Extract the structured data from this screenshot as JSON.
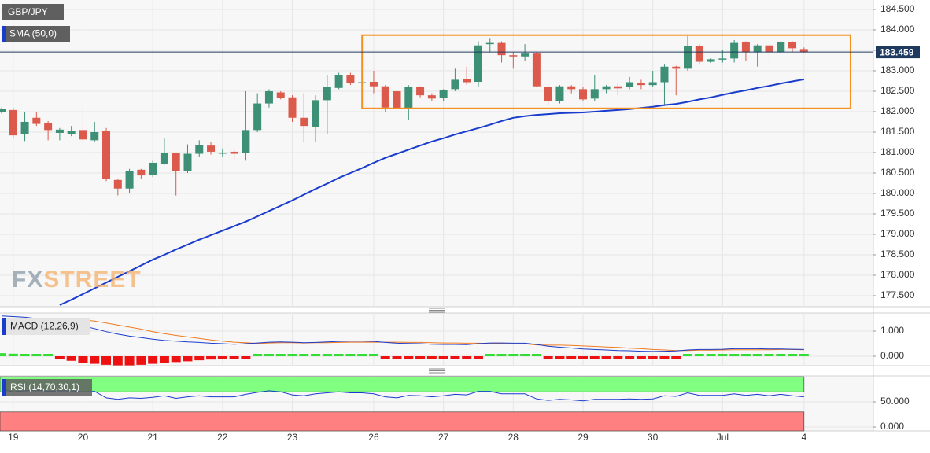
{
  "chart_data": {
    "type": "candlestick",
    "title": "GBP/JPY",
    "open": [
      181.98,
      182.04,
      181.46,
      181.85,
      181.72,
      181.48,
      181.45,
      181.55,
      181.3,
      181.52,
      180.33,
      180.12,
      180.58,
      180.45,
      180.72,
      180.98,
      180.55,
      180.97,
      181.17,
      180.98,
      181.02,
      180.98,
      181.55,
      182.2,
      182.47,
      182.35,
      181.85,
      181.62,
      182.28,
      182.58,
      182.9,
      182.7,
      182.73,
      182.62,
      182.5,
      182.07,
      182.6,
      182.4,
      182.33,
      182.55,
      182.8,
      182.73,
      183.65,
      183.68,
      183.38,
      183.35,
      183.42,
      182.6,
      182.25,
      182.62,
      182.55,
      182.32,
      182.55,
      182.62,
      182.6,
      182.7,
      182.65,
      182.72,
      183.1,
      183.05,
      183.6,
      183.22,
      183.28,
      183.3,
      183.7,
      183.45,
      183.62,
      183.45,
      183.7,
      183.53
    ],
    "high": [
      182.1,
      182.1,
      182.0,
      182.0,
      181.77,
      181.6,
      181.65,
      182.1,
      181.75,
      181.6,
      180.35,
      180.6,
      180.6,
      180.8,
      181.35,
      181.0,
      181.2,
      181.3,
      181.25,
      181.1,
      181.1,
      182.5,
      182.45,
      182.55,
      182.5,
      182.4,
      182.45,
      182.4,
      182.9,
      182.95,
      182.95,
      182.75,
      183.0,
      182.65,
      182.55,
      182.65,
      182.62,
      182.45,
      182.55,
      183.05,
      183.1,
      183.72,
      183.8,
      183.72,
      183.45,
      183.65,
      183.45,
      182.65,
      182.65,
      182.65,
      182.6,
      182.9,
      182.65,
      182.7,
      182.85,
      182.78,
      183.0,
      183.15,
      183.12,
      183.85,
      183.65,
      183.3,
      183.5,
      183.75,
      183.72,
      183.65,
      183.65,
      183.72,
      183.72,
      183.57
    ],
    "low": [
      181.95,
      181.35,
      181.28,
      181.65,
      181.3,
      181.3,
      181.4,
      181.25,
      181.25,
      180.3,
      179.95,
      180.0,
      180.35,
      180.4,
      180.7,
      179.95,
      180.5,
      180.9,
      180.95,
      180.9,
      180.8,
      180.8,
      181.5,
      182.1,
      182.3,
      181.75,
      181.25,
      181.25,
      181.45,
      182.55,
      182.65,
      182.65,
      182.45,
      182.0,
      181.75,
      181.8,
      182.35,
      182.25,
      182.25,
      182.5,
      182.65,
      182.6,
      183.45,
      183.2,
      183.05,
      183.25,
      182.6,
      182.15,
      182.2,
      182.45,
      182.25,
      182.25,
      182.45,
      182.4,
      182.55,
      182.55,
      182.6,
      182.15,
      182.4,
      183.0,
      183.15,
      183.2,
      183.2,
      183.2,
      183.25,
      183.1,
      183.15,
      183.42,
      183.45,
      183.43
    ],
    "close": [
      182.06,
      181.42,
      181.75,
      181.7,
      181.55,
      181.56,
      181.52,
      181.32,
      181.5,
      180.35,
      180.12,
      180.55,
      180.44,
      180.75,
      180.98,
      180.55,
      180.97,
      181.18,
      181.02,
      181.0,
      180.97,
      181.55,
      182.2,
      182.5,
      182.33,
      181.85,
      181.65,
      182.28,
      182.6,
      182.9,
      182.7,
      182.72,
      182.62,
      182.1,
      182.07,
      182.6,
      182.4,
      182.32,
      182.52,
      182.78,
      182.72,
      183.62,
      183.68,
      183.38,
      183.35,
      183.42,
      182.62,
      182.25,
      182.62,
      182.55,
      182.3,
      182.55,
      182.62,
      182.57,
      182.72,
      182.65,
      182.72,
      183.1,
      183.05,
      183.6,
      183.22,
      183.28,
      183.3,
      183.68,
      183.45,
      183.62,
      183.45,
      183.7,
      183.55,
      183.46
    ],
    "up_color": "#3d8f76",
    "down_color": "#db5a4c",
    "series": [
      {
        "name": "SMA (50,0)",
        "color": "#1a3ccc",
        "values": [
          null,
          null,
          null,
          null,
          null,
          177.27,
          177.4,
          177.54,
          177.68,
          177.82,
          177.96,
          178.1,
          178.24,
          178.38,
          178.5,
          178.63,
          178.75,
          178.87,
          178.98,
          179.09,
          179.2,
          179.31,
          179.44,
          179.57,
          179.7,
          179.83,
          179.97,
          180.11,
          180.24,
          180.38,
          180.5,
          180.62,
          180.75,
          180.87,
          180.97,
          181.07,
          181.17,
          181.27,
          181.35,
          181.44,
          181.52,
          181.6,
          181.68,
          181.77,
          181.85,
          181.89,
          181.92,
          181.94,
          181.96,
          181.97,
          181.98,
          182.0,
          182.02,
          182.04,
          182.06,
          182.09,
          182.12,
          182.16,
          182.19,
          182.24,
          182.3,
          182.35,
          182.41,
          182.47,
          182.52,
          182.58,
          182.63,
          182.69,
          182.74,
          182.79
        ]
      }
    ],
    "ylim": [
      177.23,
      184.73
    ],
    "yticks": [
      {
        "value": 184.5,
        "label": "184.500"
      },
      {
        "value": 184,
        "label": "184.000"
      },
      {
        "value": 183.5,
        "label": "183.500"
      },
      {
        "value": 183,
        "label": "183.000"
      },
      {
        "value": 182.5,
        "label": "182.500"
      },
      {
        "value": 182,
        "label": "182.000"
      },
      {
        "value": 181.5,
        "label": "181.500"
      },
      {
        "value": 181,
        "label": "181.000"
      },
      {
        "value": 180.5,
        "label": "180.500"
      },
      {
        "value": 180,
        "label": "180.000"
      },
      {
        "value": 179.5,
        "label": "179.500"
      },
      {
        "value": 179,
        "label": "179.000"
      },
      {
        "value": 178.5,
        "label": "178.500"
      },
      {
        "value": 178,
        "label": "178.000"
      },
      {
        "value": 177.5,
        "label": "177.500"
      }
    ],
    "xticks": [
      {
        "value": 1,
        "label": "19"
      },
      {
        "value": 7,
        "label": "20"
      },
      {
        "value": 13,
        "label": "21"
      },
      {
        "value": 19,
        "label": "22"
      },
      {
        "value": 25,
        "label": "23"
      },
      {
        "value": 32,
        "label": "26"
      },
      {
        "value": 38,
        "label": "27"
      },
      {
        "value": 44,
        "label": "28"
      },
      {
        "value": 50,
        "label": "29"
      },
      {
        "value": 56,
        "label": "30"
      },
      {
        "value": 62,
        "label": "Jul"
      },
      {
        "value": 69,
        "label": "4"
      }
    ],
    "grid": true,
    "last_price": 183.459,
    "price_line_color": "#1e3a5f",
    "box": {
      "x": [
        31,
        73
      ],
      "y": [
        182.08,
        183.87
      ],
      "color": "#f39220"
    },
    "watermark": {
      "prefix": "FX",
      "text": "STREET"
    },
    "macd": {
      "name": "MACD (12,26,9)",
      "macd": [
        1.6,
        1.58,
        1.55,
        1.5,
        1.45,
        1.38,
        1.3,
        1.2,
        1.1,
        0.98,
        0.88,
        0.8,
        0.74,
        0.68,
        0.63,
        0.6,
        0.57,
        0.55,
        0.52,
        0.5,
        0.48,
        0.5,
        0.53,
        0.56,
        0.57,
        0.56,
        0.54,
        0.55,
        0.57,
        0.59,
        0.6,
        0.6,
        0.59,
        0.55,
        0.52,
        0.51,
        0.5,
        0.48,
        0.47,
        0.47,
        0.46,
        0.5,
        0.53,
        0.53,
        0.52,
        0.52,
        0.47,
        0.4,
        0.36,
        0.33,
        0.29,
        0.27,
        0.25,
        0.23,
        0.22,
        0.2,
        0.19,
        0.2,
        0.21,
        0.25,
        0.27,
        0.27,
        0.28,
        0.3,
        0.3,
        0.3,
        0.29,
        0.29,
        0.28,
        0.27
      ],
      "signal": [
        1.48,
        1.48,
        1.47,
        1.45,
        1.43,
        1.48,
        1.48,
        1.45,
        1.4,
        1.32,
        1.24,
        1.16,
        1.08,
        0.98,
        0.9,
        0.83,
        0.77,
        0.71,
        0.65,
        0.6,
        0.56,
        0.54,
        0.51,
        0.53,
        0.54,
        0.54,
        0.53,
        0.54,
        0.54,
        0.55,
        0.56,
        0.56,
        0.56,
        0.56,
        0.56,
        0.55,
        0.55,
        0.54,
        0.53,
        0.53,
        0.52,
        0.52,
        0.51,
        0.5,
        0.49,
        0.49,
        0.45,
        0.44,
        0.44,
        0.43,
        0.41,
        0.39,
        0.37,
        0.35,
        0.32,
        0.3,
        0.27,
        0.25,
        0.23,
        0.23,
        0.24,
        0.24,
        0.25,
        0.26,
        0.26,
        0.26,
        0.26,
        0.27,
        0.27,
        0.26
      ],
      "histogram": [
        0.12,
        0.1,
        0.08,
        0.05,
        0.02,
        -0.1,
        -0.18,
        -0.25,
        -0.3,
        -0.34,
        -0.36,
        -0.36,
        -0.34,
        -0.3,
        -0.27,
        -0.23,
        -0.2,
        -0.16,
        -0.13,
        -0.1,
        -0.08,
        -0.04,
        0.02,
        0.03,
        0.03,
        0.02,
        0.01,
        0.01,
        0.03,
        0.04,
        0.04,
        0.04,
        0.03,
        -0.01,
        -0.04,
        -0.04,
        -0.05,
        -0.06,
        -0.06,
        -0.06,
        -0.06,
        -0.02,
        0.02,
        0.03,
        0.03,
        0.03,
        0.02,
        -0.04,
        -0.08,
        -0.1,
        -0.12,
        -0.12,
        -0.12,
        -0.12,
        -0.1,
        -0.1,
        -0.08,
        -0.05,
        -0.02,
        0.02,
        0.03,
        0.03,
        0.03,
        0.04,
        0.04,
        0.04,
        0.03,
        0.02,
        0.01,
        0.01
      ],
      "macd_color": "#1a3ccc",
      "signal_color": "#f07a20",
      "hist_up_color": "#33dd33",
      "hist_down_color": "#ee1111",
      "ylim": [
        -0.375,
        1.72
      ],
      "yticks": [
        {
          "value": 1,
          "label": "1.000"
        },
        {
          "value": 0,
          "label": "0.000"
        }
      ]
    },
    "rsi": {
      "name": "RSI (14,70,30,1)",
      "values": [
        75,
        70,
        72,
        73,
        71,
        72,
        72,
        70,
        71,
        58,
        55,
        58,
        57,
        59,
        62,
        57,
        60,
        62,
        60,
        60,
        60,
        65,
        69,
        72,
        70,
        64,
        62,
        66,
        68,
        70,
        68,
        68,
        66,
        60,
        58,
        63,
        62,
        60,
        62,
        65,
        64,
        71,
        71,
        66,
        66,
        66,
        56,
        53,
        55,
        54,
        52,
        55,
        55,
        55,
        56,
        55,
        56,
        62,
        61,
        68,
        63,
        63,
        63,
        66,
        63,
        65,
        62,
        65,
        62,
        60
      ],
      "color": "#1a3ccc",
      "overbought": [
        70,
        100
      ],
      "oversold": [
        0,
        30
      ],
      "overbought_color": "#80ff80",
      "oversold_color": "#ff8080",
      "ylim": [
        -7.8,
        101.6
      ],
      "yticks": [
        {
          "value": 50,
          "label": "50.000"
        },
        {
          "value": 0,
          "label": "0.000"
        }
      ]
    }
  }
}
